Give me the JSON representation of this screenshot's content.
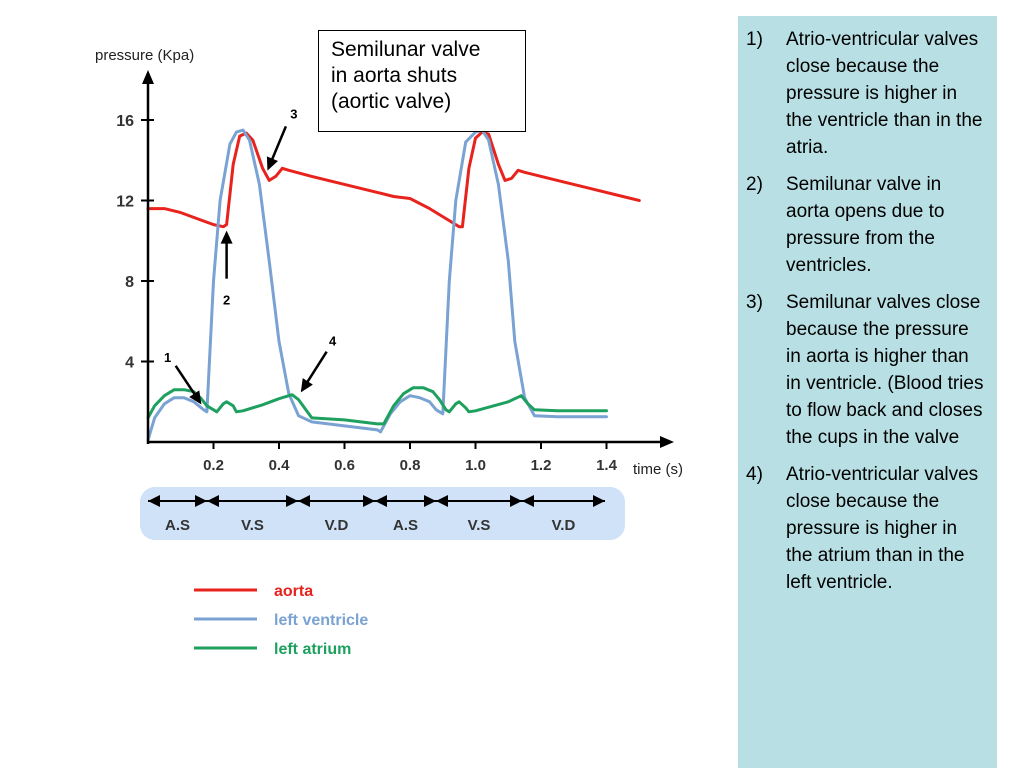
{
  "chart_data": {
    "type": "line",
    "xlabel": "time (s)",
    "ylabel": "pressure (Kpa)",
    "xlim": [
      0,
      1.6
    ],
    "ylim": [
      0,
      18
    ],
    "x_ticks": [
      0.2,
      0.4,
      0.6,
      0.8,
      1.0,
      1.2,
      1.4
    ],
    "x_tick_labels": [
      "0.2",
      "0.4",
      "0.6",
      "0.8",
      "1.0",
      "1.2",
      "1.4"
    ],
    "y_ticks": [
      4,
      8,
      12,
      16
    ],
    "y_tick_labels": [
      "4",
      "8",
      "12",
      "16"
    ],
    "series": [
      {
        "name": "aorta",
        "color": "#e8231d",
        "points": [
          [
            0.0,
            11.6
          ],
          [
            0.05,
            11.6
          ],
          [
            0.1,
            11.4
          ],
          [
            0.15,
            11.1
          ],
          [
            0.2,
            10.8
          ],
          [
            0.23,
            10.7
          ],
          [
            0.24,
            10.8
          ],
          [
            0.26,
            13.8
          ],
          [
            0.28,
            15.2
          ],
          [
            0.3,
            15.35
          ],
          [
            0.32,
            15.0
          ],
          [
            0.35,
            13.6
          ],
          [
            0.37,
            13.0
          ],
          [
            0.39,
            13.2
          ],
          [
            0.41,
            13.6
          ],
          [
            0.43,
            13.5
          ],
          [
            0.5,
            13.2
          ],
          [
            0.6,
            12.8
          ],
          [
            0.7,
            12.4
          ],
          [
            0.75,
            12.2
          ],
          [
            0.8,
            12.1
          ],
          [
            0.86,
            11.6
          ],
          [
            0.92,
            11.0
          ],
          [
            0.95,
            10.7
          ],
          [
            0.96,
            10.7
          ],
          [
            0.98,
            13.6
          ],
          [
            1.0,
            15.1
          ],
          [
            1.02,
            15.4
          ],
          [
            1.04,
            15.3
          ],
          [
            1.07,
            13.8
          ],
          [
            1.09,
            13.0
          ],
          [
            1.11,
            13.1
          ],
          [
            1.13,
            13.5
          ],
          [
            1.15,
            13.4
          ],
          [
            1.25,
            13.0
          ],
          [
            1.35,
            12.6
          ],
          [
            1.45,
            12.2
          ],
          [
            1.5,
            12.0
          ]
        ]
      },
      {
        "name": "left ventricle",
        "color": "#7aa2d2",
        "points": [
          [
            0.0,
            0.1
          ],
          [
            0.02,
            1.2
          ],
          [
            0.05,
            1.9
          ],
          [
            0.08,
            2.2
          ],
          [
            0.11,
            2.2
          ],
          [
            0.14,
            2.0
          ],
          [
            0.17,
            1.6
          ],
          [
            0.18,
            1.5
          ],
          [
            0.2,
            8.0
          ],
          [
            0.22,
            12.0
          ],
          [
            0.25,
            14.8
          ],
          [
            0.27,
            15.4
          ],
          [
            0.29,
            15.5
          ],
          [
            0.31,
            15.0
          ],
          [
            0.34,
            12.8
          ],
          [
            0.37,
            9.0
          ],
          [
            0.4,
            5.0
          ],
          [
            0.43,
            2.4
          ],
          [
            0.46,
            1.3
          ],
          [
            0.5,
            1.0
          ],
          [
            0.6,
            0.8
          ],
          [
            0.7,
            0.6
          ],
          [
            0.71,
            0.5
          ],
          [
            0.74,
            1.4
          ],
          [
            0.77,
            2.0
          ],
          [
            0.8,
            2.3
          ],
          [
            0.83,
            2.2
          ],
          [
            0.86,
            2.0
          ],
          [
            0.88,
            1.6
          ],
          [
            0.9,
            1.4
          ],
          [
            0.92,
            8.0
          ],
          [
            0.94,
            12.0
          ],
          [
            0.97,
            14.9
          ],
          [
            1.0,
            15.4
          ],
          [
            1.02,
            15.5
          ],
          [
            1.04,
            15.0
          ],
          [
            1.07,
            12.8
          ],
          [
            1.1,
            9.0
          ],
          [
            1.12,
            5.0
          ],
          [
            1.15,
            2.2
          ],
          [
            1.18,
            1.3
          ],
          [
            1.25,
            1.25
          ],
          [
            1.4,
            1.25
          ]
        ]
      },
      {
        "name": "left atrium",
        "color": "#1ea05f",
        "points": [
          [
            0.0,
            1.2
          ],
          [
            0.02,
            1.8
          ],
          [
            0.05,
            2.3
          ],
          [
            0.08,
            2.6
          ],
          [
            0.11,
            2.6
          ],
          [
            0.14,
            2.5
          ],
          [
            0.16,
            2.2
          ],
          [
            0.18,
            1.8
          ],
          [
            0.2,
            1.6
          ],
          [
            0.21,
            1.5
          ],
          [
            0.23,
            1.9
          ],
          [
            0.24,
            2.0
          ],
          [
            0.26,
            1.8
          ],
          [
            0.27,
            1.5
          ],
          [
            0.29,
            1.55
          ],
          [
            0.35,
            1.85
          ],
          [
            0.4,
            2.15
          ],
          [
            0.44,
            2.35
          ],
          [
            0.46,
            2.1
          ],
          [
            0.5,
            1.2
          ],
          [
            0.6,
            1.1
          ],
          [
            0.7,
            0.9
          ],
          [
            0.72,
            0.9
          ],
          [
            0.75,
            1.8
          ],
          [
            0.78,
            2.4
          ],
          [
            0.81,
            2.7
          ],
          [
            0.84,
            2.7
          ],
          [
            0.87,
            2.5
          ],
          [
            0.89,
            2.1
          ],
          [
            0.91,
            1.6
          ],
          [
            0.92,
            1.5
          ],
          [
            0.94,
            1.9
          ],
          [
            0.95,
            2.0
          ],
          [
            0.97,
            1.7
          ],
          [
            0.98,
            1.5
          ],
          [
            1.0,
            1.55
          ],
          [
            1.1,
            2.0
          ],
          [
            1.14,
            2.3
          ],
          [
            1.16,
            1.9
          ],
          [
            1.18,
            1.6
          ],
          [
            1.25,
            1.55
          ],
          [
            1.4,
            1.55
          ]
        ]
      }
    ],
    "annotations": [
      {
        "label": "1",
        "x": 0.17,
        "y": 1.7
      },
      {
        "label": "2",
        "x": 0.24,
        "y": 10.7
      },
      {
        "label": "3",
        "x": 0.36,
        "y": 13.3
      },
      {
        "label": "4",
        "x": 0.46,
        "y": 2.3
      }
    ],
    "phase_bar": {
      "boundaries": [
        0.0,
        0.18,
        0.45,
        0.72,
        0.88,
        1.15,
        1.42
      ],
      "labels": [
        "A.S",
        "V.S",
        "V.D",
        "A.S",
        "V.S",
        "V.D"
      ]
    },
    "legend": {
      "placement": "bottom",
      "items": [
        {
          "label": "aorta",
          "color": "#e8231d"
        },
        {
          "label": "left ventricle",
          "color": "#7aa2d2"
        },
        {
          "label": "left atrium",
          "color": "#1ea05f"
        }
      ]
    }
  },
  "callout": {
    "lines": [
      "Semilunar valve",
      "in aorta shuts",
      "(aortic valve)"
    ]
  },
  "notes": [
    {
      "num": "1)",
      "text": "Atrio-ventricular valves close because the pressure is higher in the ventricle than in the atria."
    },
    {
      "num": "2)",
      "text": "Semilunar valve in aorta  opens due to pressure from the ventricles."
    },
    {
      "num": "3)",
      "text": "Semilunar valves close because the pressure in aorta is higher than in ventricle. (Blood tries to flow back and closes the cups in the valve"
    },
    {
      "num": "4)",
      "text": "Atrio-ventricular valves close because the pressure is higher in the atrium than in the left ventricle."
    }
  ]
}
